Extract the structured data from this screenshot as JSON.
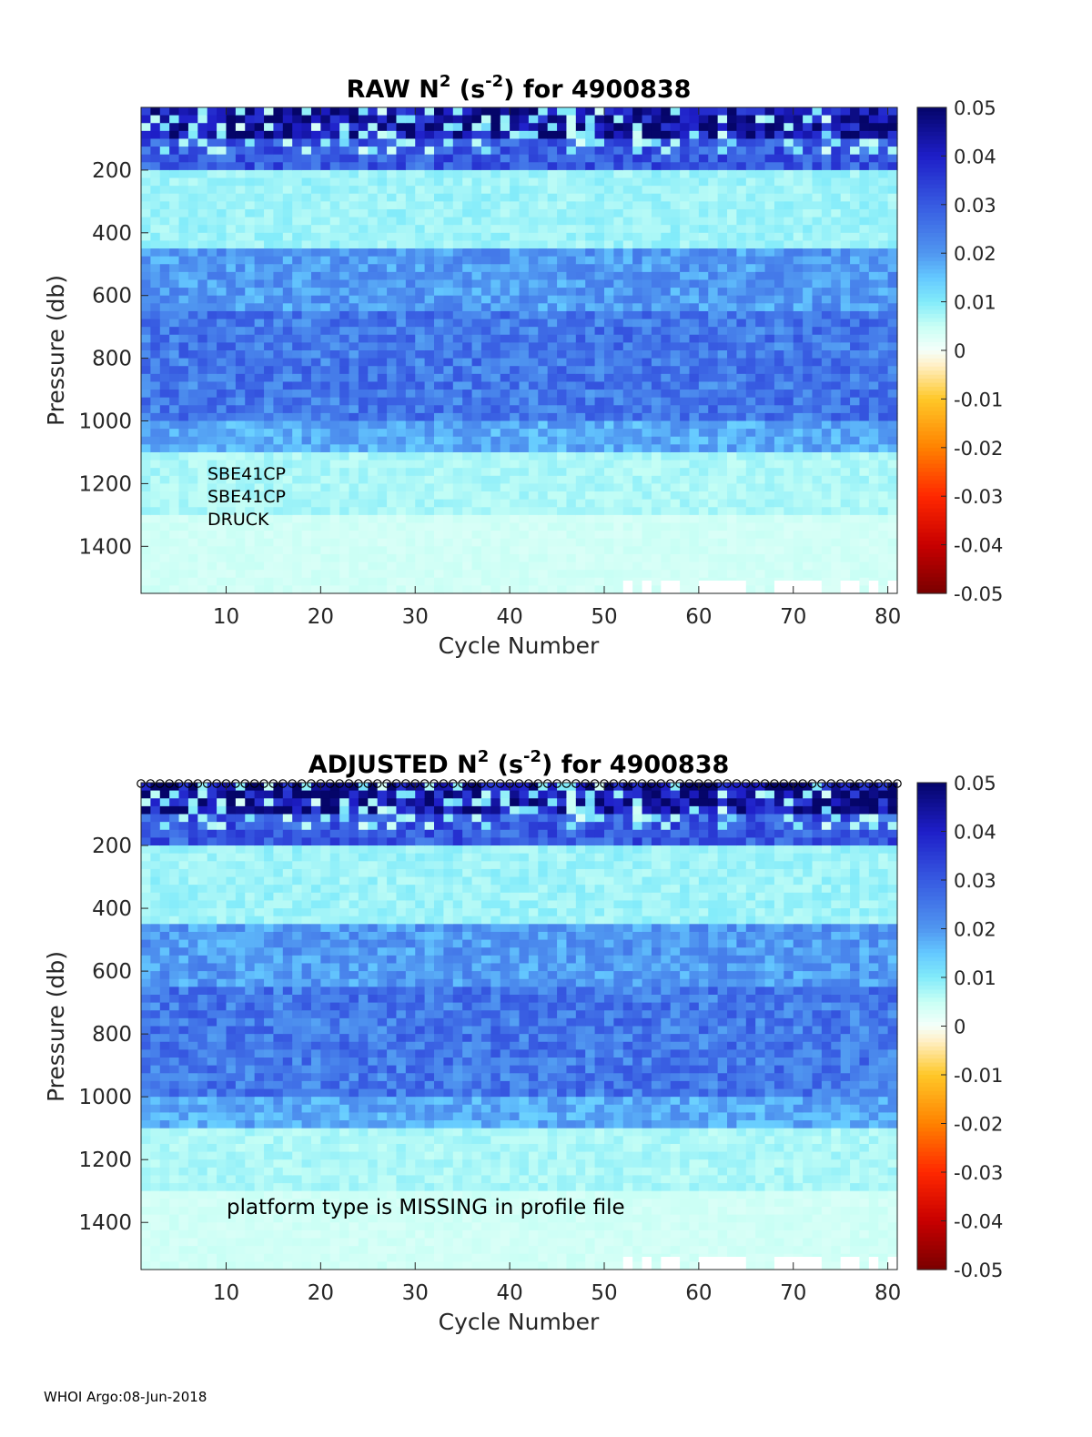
{
  "footer": "WHOI Argo:08-Jun-2018",
  "colors": {
    "missing_bar": "#ffffff",
    "axis": "#262626",
    "marker_stroke": "#000000"
  },
  "chart_data": [
    {
      "type": "heatmap",
      "title_prefix": "RAW N",
      "title_sup1": "2",
      "title_mid": " (s",
      "title_sup2": "-2",
      "title_suffix": ") for 4900838",
      "xlabel": "Cycle Number",
      "ylabel": "Pressure (db)",
      "xlim": [
        1,
        81
      ],
      "ylim": [
        0,
        1550
      ],
      "y_reversed": true,
      "xticks": [
        10,
        20,
        30,
        40,
        50,
        60,
        70,
        80
      ],
      "yticks": [
        200,
        400,
        600,
        800,
        1000,
        1200,
        1400
      ],
      "clim": [
        -0.05,
        0.05
      ],
      "colormap": "blue-white-red diverging",
      "colorbar_ticks": [
        "0.05",
        "0.04",
        "0.03",
        "0.02",
        "0.01",
        "0",
        "-0.01",
        "-0.02",
        "-0.03",
        "-0.04",
        "-0.05"
      ],
      "annotations": [
        "SBE41CP",
        "SBE41CP",
        "DRUCK"
      ],
      "layers": [
        {
          "p_top": 0,
          "p_bot": 100,
          "n2": 0.045
        },
        {
          "p_top": 100,
          "p_bot": 200,
          "n2": 0.03
        },
        {
          "p_top": 200,
          "p_bot": 450,
          "n2": 0.008
        },
        {
          "p_top": 450,
          "p_bot": 650,
          "n2": 0.02
        },
        {
          "p_top": 650,
          "p_bot": 1000,
          "n2": 0.025
        },
        {
          "p_top": 1000,
          "p_bot": 1100,
          "n2": 0.018
        },
        {
          "p_top": 1100,
          "p_bot": 1300,
          "n2": 0.007
        },
        {
          "p_top": 1300,
          "p_bot": 1550,
          "n2": 0.004
        }
      ],
      "missing_bottom_ranges": [
        [
          52,
          53
        ],
        [
          54,
          55
        ],
        [
          56,
          58
        ],
        [
          60,
          65
        ],
        [
          68,
          73
        ],
        [
          75,
          77
        ],
        [
          78,
          79
        ],
        [
          80,
          81
        ]
      ],
      "top_markers": false
    },
    {
      "type": "heatmap",
      "title_prefix": "ADJUSTED N",
      "title_sup1": "2",
      "title_mid": " (s",
      "title_sup2": "-2",
      "title_suffix": ") for 4900838",
      "xlabel": "Cycle Number",
      "ylabel": "Pressure (db)",
      "xlim": [
        1,
        81
      ],
      "ylim": [
        0,
        1550
      ],
      "y_reversed": true,
      "xticks": [
        10,
        20,
        30,
        40,
        50,
        60,
        70,
        80
      ],
      "yticks": [
        200,
        400,
        600,
        800,
        1000,
        1200,
        1400
      ],
      "clim": [
        -0.05,
        0.05
      ],
      "colormap": "blue-white-red diverging",
      "colorbar_ticks": [
        "0.05",
        "0.04",
        "0.03",
        "0.02",
        "0.01",
        "0",
        "-0.01",
        "-0.02",
        "-0.03",
        "-0.04",
        "-0.05"
      ],
      "annotations": [
        "platform type is MISSING in profile file"
      ],
      "layers": [
        {
          "p_top": 0,
          "p_bot": 100,
          "n2": 0.045
        },
        {
          "p_top": 100,
          "p_bot": 200,
          "n2": 0.03
        },
        {
          "p_top": 200,
          "p_bot": 450,
          "n2": 0.008
        },
        {
          "p_top": 450,
          "p_bot": 650,
          "n2": 0.02
        },
        {
          "p_top": 650,
          "p_bot": 1000,
          "n2": 0.025
        },
        {
          "p_top": 1000,
          "p_bot": 1100,
          "n2": 0.018
        },
        {
          "p_top": 1100,
          "p_bot": 1300,
          "n2": 0.007
        },
        {
          "p_top": 1300,
          "p_bot": 1550,
          "n2": 0.004
        }
      ],
      "missing_bottom_ranges": [
        [
          52,
          53
        ],
        [
          54,
          55
        ],
        [
          56,
          58
        ],
        [
          60,
          65
        ],
        [
          68,
          73
        ],
        [
          75,
          77
        ],
        [
          78,
          79
        ],
        [
          80,
          81
        ]
      ],
      "top_markers": true
    }
  ]
}
